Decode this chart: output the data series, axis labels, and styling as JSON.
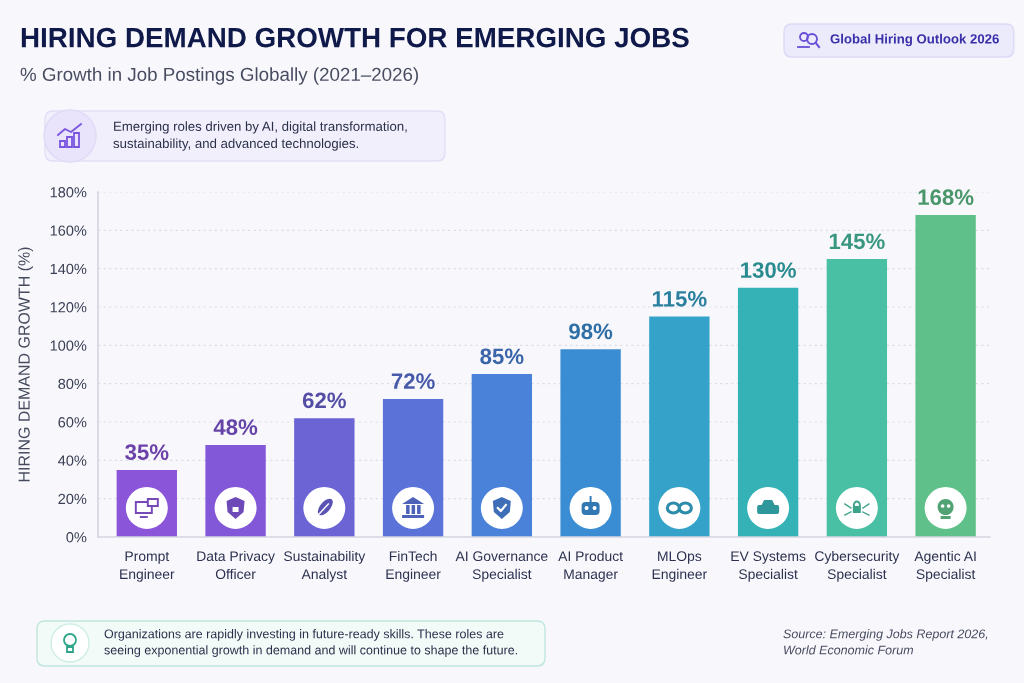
{
  "chart_data": {
    "type": "bar",
    "title": "HIRING DEMAND GROWTH FOR EMERGING JOBS",
    "subtitle": "% Growth in Job Postings Globally (2021–2026)",
    "ylabel": "HIRING DEMAND GROWTH (%)",
    "categories": [
      "Prompt Engineer",
      "Data Privacy Officer",
      "Sustainability Analyst",
      "FinTech Engineer",
      "AI Governance Specialist",
      "AI Product Manager",
      "MLOps Engineer",
      "EV Systems Specialist",
      "Cybersecurity Specialist",
      "Agentic AI Specialist"
    ],
    "values": [
      35,
      48,
      62,
      72,
      85,
      98,
      115,
      130,
      145,
      168
    ],
    "colors": [
      "#8b55d9",
      "#8257d8",
      "#6c63d5",
      "#5b73d9",
      "#4a82d9",
      "#3b8dd3",
      "#35a3c9",
      "#35b2b6",
      "#49c0a4",
      "#5fc089"
    ],
    "value_labels": [
      "35%",
      "48%",
      "62%",
      "72%",
      "85%",
      "98%",
      "115%",
      "130%",
      "145%",
      "168%"
    ],
    "ylim": [
      0,
      180
    ],
    "yticks": [
      {
        "value": 0,
        "label": "0%"
      },
      {
        "value": 20,
        "label": "20%"
      },
      {
        "value": 40,
        "label": "40%"
      },
      {
        "value": 60,
        "label": "60%"
      },
      {
        "value": 80,
        "label": "80%"
      },
      {
        "value": 100,
        "label": "100%"
      },
      {
        "value": 120,
        "label": "120%"
      },
      {
        "value": 140,
        "label": "140%"
      },
      {
        "value": 160,
        "label": "160%"
      },
      {
        "value": 180,
        "label": "180%"
      }
    ],
    "grid": "y",
    "annotations": [
      "Global Hiring Outlook 2026",
      "Emerging roles driven by AI, digital transformation, sustainability, and advanced technologies.",
      "Organizations are rapidly investing in future-ready skills. These roles are seeing exponential growth in demand and will continue to shape the future.",
      "Source: Emerging Jobs Report 2026, World Economic Forum"
    ]
  }
}
